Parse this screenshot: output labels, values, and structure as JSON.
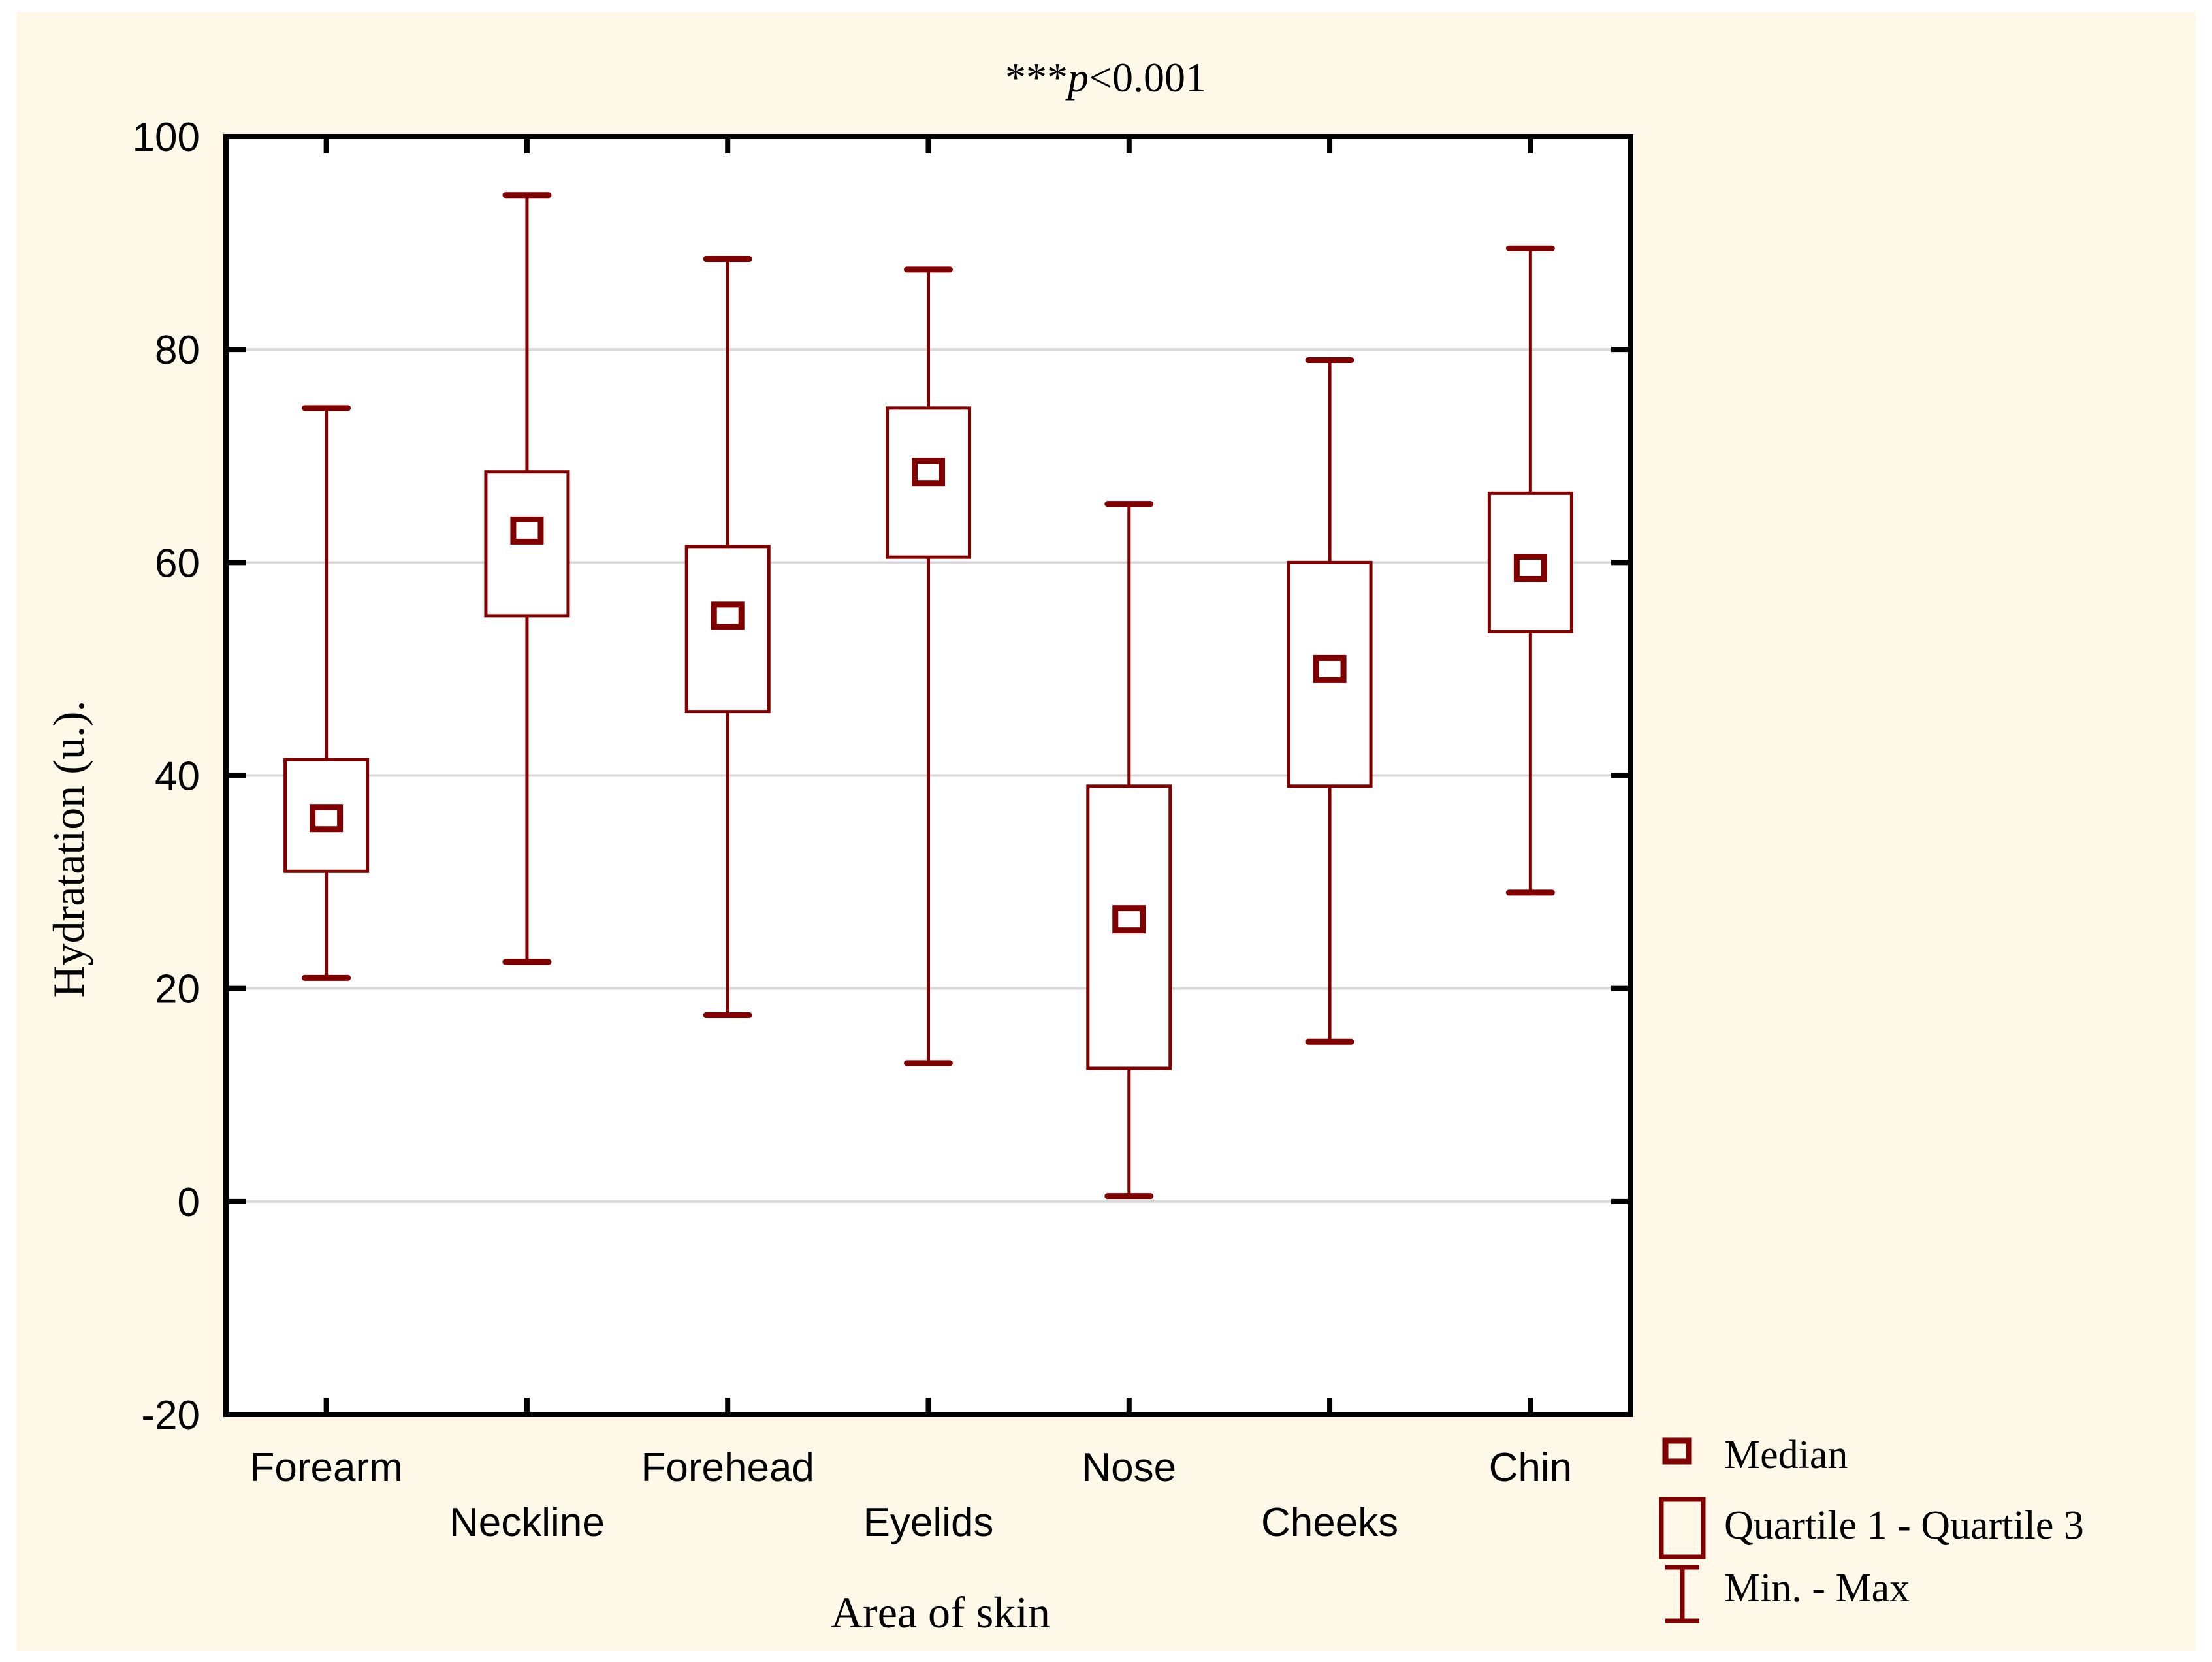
{
  "figure": {
    "background_color": "#FDF8E8",
    "plot_background_color": "#FFFFFF",
    "axis_color": "#000000",
    "gridline_color": "#D9D9D9",
    "box_color": "#800000",
    "title": {
      "stars": "***",
      "var": "p",
      "rest": "<0.001"
    }
  },
  "chart_data": {
    "type": "boxplot",
    "title": "***p<0.001",
    "xlabel": "Area of skin",
    "ylabel": "Hydratation (u.).",
    "ylim": [
      -20,
      100
    ],
    "yticks": [
      -20,
      0,
      20,
      40,
      60,
      80,
      100
    ],
    "gridlines": [
      0,
      20,
      40,
      60,
      80
    ],
    "grid": true,
    "legend_position": "bottom-right",
    "categories": [
      "Forearm",
      "Neckline",
      "Forehead",
      "Eyelids",
      "Nose",
      "Cheeks",
      "Chin"
    ],
    "label_rows": [
      1,
      2,
      1,
      2,
      1,
      2,
      1
    ],
    "series": [
      {
        "name": "Forearm",
        "min": 21,
        "q1": 31,
        "median": 36,
        "q3": 41.5,
        "max": 74.5
      },
      {
        "name": "Neckline",
        "min": 22.5,
        "q1": 55,
        "median": 63,
        "q3": 68.5,
        "max": 94.5
      },
      {
        "name": "Forehead",
        "min": 17.5,
        "q1": 46,
        "median": 55,
        "q3": 61.5,
        "max": 88.5
      },
      {
        "name": "Eyelids",
        "min": 13,
        "q1": 60.5,
        "median": 68.5,
        "q3": 74.5,
        "max": 87.5
      },
      {
        "name": "Nose",
        "min": 0.5,
        "q1": 12.5,
        "median": 26.5,
        "q3": 39,
        "max": 65.5
      },
      {
        "name": "Cheeks",
        "min": 15,
        "q1": 39,
        "median": 50,
        "q3": 60,
        "max": 79
      },
      {
        "name": "Chin",
        "min": 29,
        "q1": 53.5,
        "median": 59.5,
        "q3": 66.5,
        "max": 89.5
      }
    ],
    "legend": [
      {
        "label": "Median",
        "symbol": "median-square"
      },
      {
        "label": "Quartile 1 - Quartile 3",
        "symbol": "quartile-box"
      },
      {
        "label": "Min. - Max",
        "symbol": "min-max-whisker"
      }
    ]
  }
}
